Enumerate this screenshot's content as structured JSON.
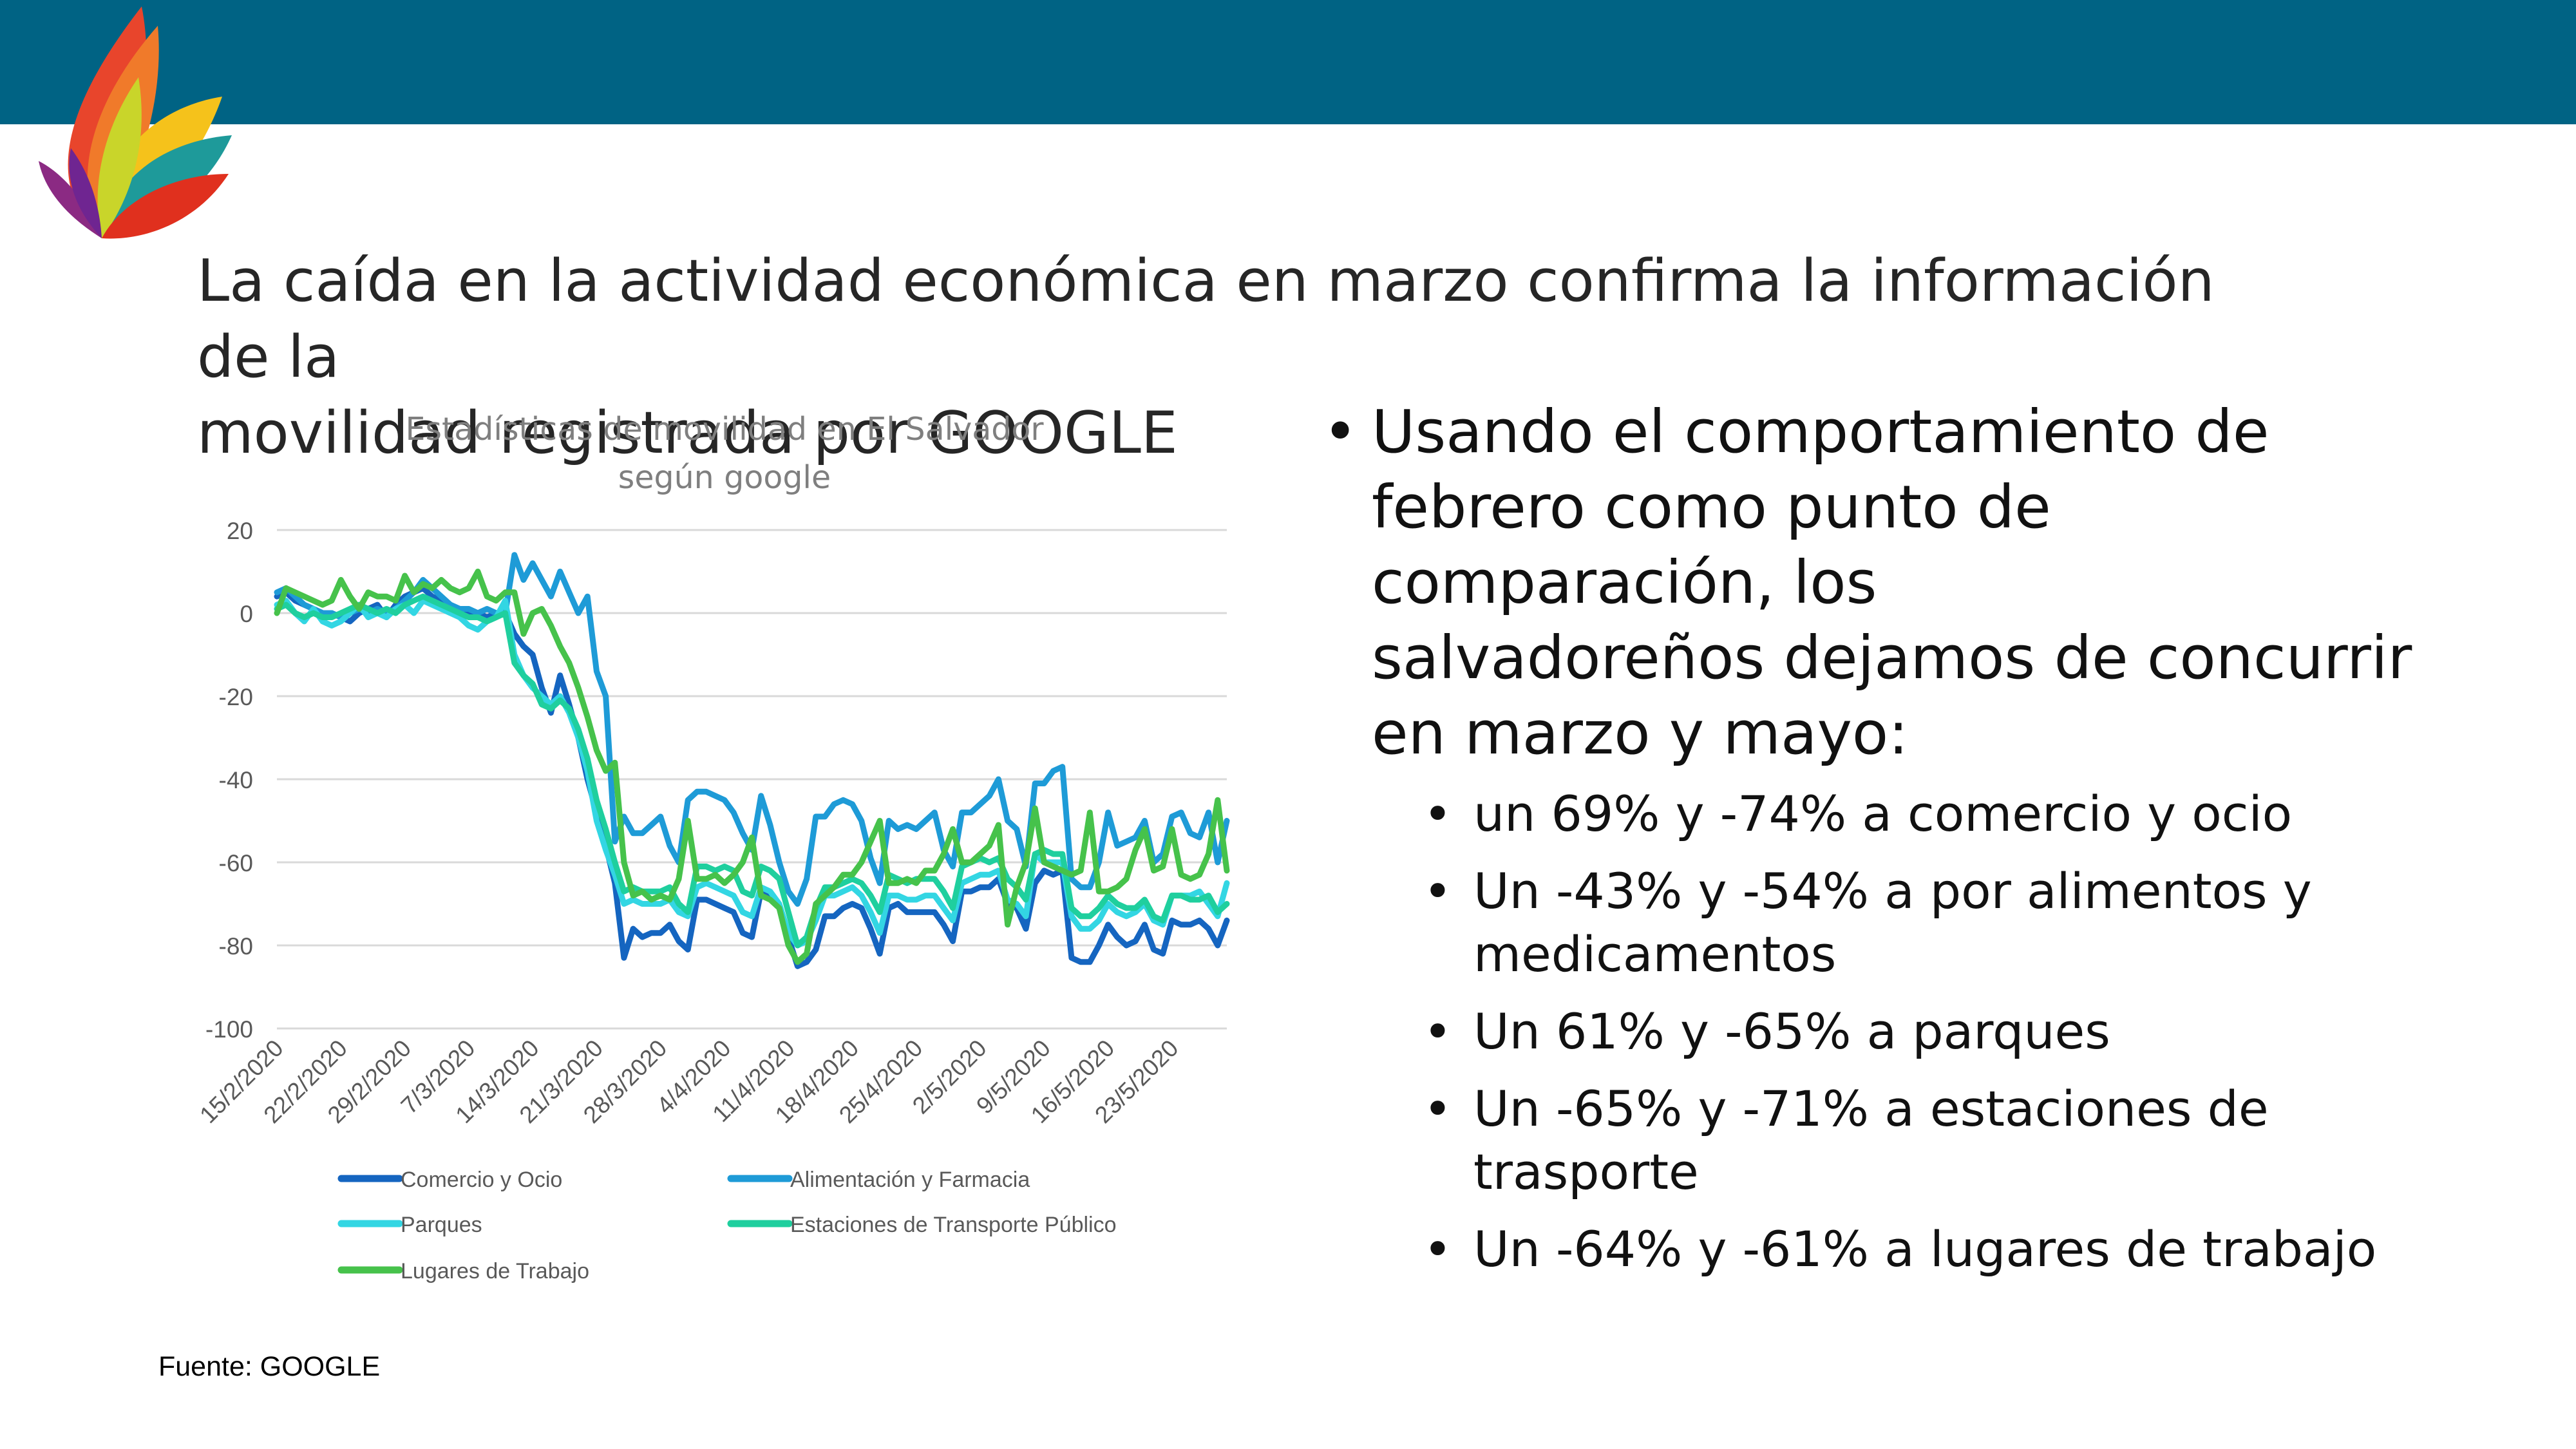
{
  "slide": {
    "title_lines": [
      "La caída en la actividad económica en marzo confirma la información de la",
      "movilidad registrada por GOOGLE"
    ],
    "source": "Fuente: GOOGLE"
  },
  "bullets": {
    "main_lines": [
      "Usando el comportamiento de",
      "febrero como punto de",
      "comparación, los",
      "salvadoreños  dejamos de concurrir",
      "en marzo y mayo:"
    ],
    "items": [
      {
        "lines": [
          " un 69%  y -74% a comercio y ocio"
        ]
      },
      {
        "lines": [
          "Un -43% y -54% a por alimentos y",
          "medicamentos"
        ]
      },
      {
        "lines": [
          "Un 61% y -65% a parques"
        ]
      },
      {
        "lines": [
          "Un -65% y -71% a estaciones de",
          "trasporte"
        ]
      },
      {
        "lines": [
          "Un -64% y -61% a lugares de trabajo"
        ]
      }
    ]
  },
  "chart_data": {
    "type": "line",
    "title_lines": [
      "Estadísticas de movilidad  en El Salvador",
      "según google"
    ],
    "xlabel": "",
    "ylabel": "",
    "ylim": [
      -100,
      20
    ],
    "yticks": [
      20,
      0,
      -20,
      -40,
      -60,
      -80,
      -100
    ],
    "grid": true,
    "legend_position": "bottom",
    "x_start": "15/2/2020",
    "x_end": "28/5/2020",
    "x_tick_labels": [
      "15/2/2020",
      "22/2/2020",
      "29/2/2020",
      "7/3/2020",
      "14/3/2020",
      "21/3/2020",
      "28/3/2020",
      "4/4/2020",
      "11/4/2020",
      "18/4/2020",
      "25/4/2020",
      "2/5/2020",
      "9/5/2020",
      "16/5/2020",
      "23/5/2020"
    ],
    "series": [
      {
        "name": "Comercio y Ocio",
        "color": "#1565c0",
        "values": [
          4,
          5,
          3,
          2,
          1,
          0,
          0,
          -1,
          -2,
          0,
          1,
          2,
          -1,
          2,
          4,
          5,
          6,
          4,
          3,
          2,
          1,
          0,
          0,
          -1,
          0,
          0,
          -5,
          -8,
          -10,
          -18,
          -24,
          -15,
          -22,
          -30,
          -40,
          -48,
          -56,
          -65,
          -83,
          -76,
          -78,
          -77,
          -77,
          -75,
          -79,
          -81,
          -69,
          -69,
          -70,
          -71,
          -72,
          -77,
          -78,
          -67,
          -68,
          -71,
          -78,
          -85,
          -84,
          -81,
          -73,
          -73,
          -71,
          -70,
          -71,
          -76,
          -82,
          -71,
          -70,
          -72,
          -72,
          -72,
          -72,
          -75,
          -79,
          -67,
          -67,
          -66,
          -66,
          -64,
          -70,
          -71,
          -76,
          -65,
          -62,
          -63,
          -62,
          -83,
          -84,
          -84,
          -80,
          -75,
          -78,
          -80,
          -79,
          -75,
          -81,
          -82,
          -74,
          -75,
          -75,
          -74,
          -76,
          -80,
          -74
        ]
      },
      {
        "name": "Alimentación y Farmacia",
        "color": "#1e9bd7",
        "values": [
          5,
          6,
          4,
          2,
          1,
          0,
          0,
          -1,
          0,
          1,
          0,
          1,
          0,
          1,
          3,
          5,
          8,
          6,
          4,
          2,
          1,
          1,
          0,
          1,
          0,
          0,
          14,
          8,
          12,
          8,
          4,
          10,
          5,
          0,
          4,
          -14,
          -20,
          -55,
          -49,
          -53,
          -53,
          -51,
          -49,
          -56,
          -60,
          -45,
          -43,
          -43,
          -44,
          -45,
          -48,
          -53,
          -57,
          -44,
          -51,
          -60,
          -67,
          -70,
          -64,
          -49,
          -49,
          -46,
          -45,
          -46,
          -50,
          -59,
          -65,
          -50,
          -52,
          -51,
          -52,
          -50,
          -48,
          -57,
          -61,
          -48,
          -48,
          -46,
          -44,
          -40,
          -50,
          -52,
          -61,
          -41,
          -41,
          -38,
          -37,
          -64,
          -66,
          -66,
          -60,
          -48,
          -56,
          -55,
          -54,
          -50,
          -60,
          -58,
          -49,
          -48,
          -53,
          -54,
          -48,
          -60,
          -50
        ]
      },
      {
        "name": "Parques",
        "color": "#33d6e3",
        "values": [
          2,
          3,
          0,
          -2,
          1,
          -2,
          -3,
          -2,
          0,
          2,
          -1,
          0,
          -1,
          1,
          2,
          0,
          3,
          2,
          1,
          0,
          -1,
          -3,
          -4,
          -2,
          -1,
          3,
          -10,
          -15,
          -18,
          -20,
          -22,
          -20,
          -24,
          -30,
          -38,
          -50,
          -57,
          -63,
          -70,
          -69,
          -70,
          -70,
          -70,
          -69,
          -72,
          -73,
          -66,
          -65,
          -66,
          -67,
          -68,
          -72,
          -73,
          -66,
          -67,
          -70,
          -77,
          -80,
          -79,
          -74,
          -68,
          -68,
          -67,
          -66,
          -68,
          -72,
          -77,
          -68,
          -68,
          -69,
          -69,
          -68,
          -68,
          -71,
          -74,
          -65,
          -64,
          -63,
          -63,
          -62,
          -69,
          -70,
          -73,
          -58,
          -60,
          -60,
          -60,
          -73,
          -76,
          -76,
          -74,
          -70,
          -72,
          -73,
          -72,
          -70,
          -74,
          -75,
          -68,
          -68,
          -68,
          -67,
          -70,
          -73,
          -65
        ]
      },
      {
        "name": "Estaciones de Transporte Público",
        "color": "#1fcf9e",
        "values": [
          1,
          2,
          0,
          -1,
          0,
          -1,
          -1,
          0,
          1,
          2,
          1,
          0,
          1,
          0,
          2,
          3,
          4,
          3,
          2,
          1,
          0,
          -1,
          -1,
          -2,
          -1,
          0,
          -12,
          -15,
          -17,
          -22,
          -23,
          -21,
          -23,
          -28,
          -35,
          -45,
          -52,
          -60,
          -67,
          -66,
          -67,
          -67,
          -67,
          -66,
          -70,
          -72,
          -61,
          -61,
          -62,
          -61,
          -62,
          -67,
          -68,
          -61,
          -62,
          -64,
          -72,
          -80,
          -78,
          -71,
          -66,
          -66,
          -65,
          -64,
          -65,
          -68,
          -72,
          -63,
          -64,
          -65,
          -64,
          -64,
          -64,
          -67,
          -71,
          -61,
          -60,
          -59,
          -60,
          -59,
          -64,
          -66,
          -69,
          -58,
          -57,
          -58,
          -58,
          -71,
          -73,
          -73,
          -71,
          -68,
          -70,
          -71,
          -71,
          -69,
          -73,
          -74,
          -68,
          -68,
          -69,
          -69,
          -68,
          -72,
          -70
        ]
      },
      {
        "name": "Lugares de Trabajo",
        "color": "#46c24b",
        "values": [
          0,
          6,
          5,
          4,
          3,
          2,
          3,
          8,
          4,
          1,
          5,
          4,
          4,
          3,
          9,
          5,
          7,
          6,
          8,
          6,
          5,
          6,
          10,
          4,
          3,
          5,
          5,
          -5,
          0,
          1,
          -3,
          -8,
          -12,
          -18,
          -25,
          -33,
          -38,
          -36,
          -60,
          -68,
          -67,
          -69,
          -68,
          -69,
          -64,
          -50,
          -64,
          -64,
          -63,
          -65,
          -63,
          -60,
          -54,
          -68,
          -69,
          -71,
          -80,
          -84,
          -82,
          -70,
          -68,
          -66,
          -63,
          -63,
          -60,
          -55,
          -50,
          -65,
          -65,
          -64,
          -65,
          -62,
          -62,
          -58,
          -52,
          -60,
          -60,
          -58,
          -56,
          -51,
          -75,
          -66,
          -60,
          -47,
          -60,
          -61,
          -62,
          -63,
          -62,
          -48,
          -67,
          -67,
          -66,
          -64,
          -57,
          -52,
          -62,
          -61,
          -52,
          -63,
          -64,
          -63,
          -58,
          -45,
          -62
        ]
      }
    ]
  }
}
